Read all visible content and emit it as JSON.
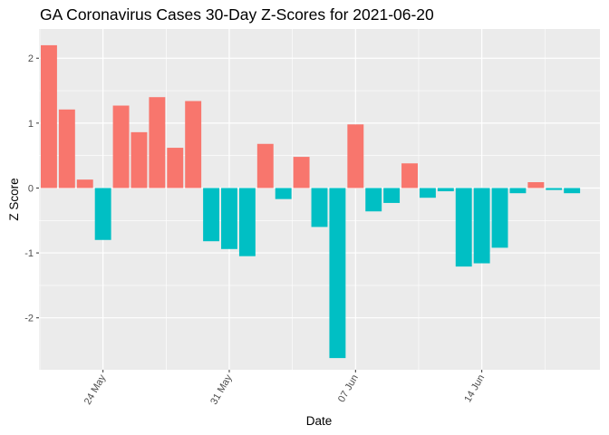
{
  "chart_data": {
    "type": "bar",
    "title": "GA Coronavirus Cases 30-Day Z-Scores for 2021-06-20",
    "xlabel": "Date",
    "ylabel": "Z Score",
    "ylim": [
      -2.8,
      2.45
    ],
    "yticks": [
      -2,
      -1,
      0,
      1,
      2
    ],
    "xticks": [
      {
        "date": "2021-05-24",
        "label": "24 May"
      },
      {
        "date": "2021-05-31",
        "label": "31 May"
      },
      {
        "date": "2021-06-07",
        "label": "07 Jun"
      },
      {
        "date": "2021-06-14",
        "label": "14 Jun"
      }
    ],
    "grid": true,
    "legend": "none",
    "colors": {
      "positive": "#F8766D",
      "negative": "#00BFC4",
      "panel": "#EBEBEB",
      "grid": "#FFFFFF"
    },
    "dates": [
      "2021-05-21",
      "2021-05-22",
      "2021-05-23",
      "2021-05-24",
      "2021-05-25",
      "2021-05-26",
      "2021-05-27",
      "2021-05-28",
      "2021-05-29",
      "2021-05-30",
      "2021-05-31",
      "2021-06-01",
      "2021-06-02",
      "2021-06-03",
      "2021-06-04",
      "2021-06-05",
      "2021-06-06",
      "2021-06-07",
      "2021-06-08",
      "2021-06-09",
      "2021-06-10",
      "2021-06-11",
      "2021-06-12",
      "2021-06-13",
      "2021-06-14",
      "2021-06-15",
      "2021-06-16",
      "2021-06-17",
      "2021-06-18",
      "2021-06-19"
    ],
    "values": [
      2.2,
      1.21,
      0.13,
      -0.8,
      1.27,
      0.86,
      1.4,
      0.62,
      1.34,
      -0.82,
      -0.94,
      -1.05,
      0.68,
      -0.17,
      0.48,
      -0.6,
      -2.62,
      0.98,
      -0.36,
      -0.23,
      0.38,
      -0.15,
      -0.05,
      -1.21,
      -1.16,
      -0.92,
      -0.08,
      0.09,
      -0.03,
      -0.08
    ]
  }
}
